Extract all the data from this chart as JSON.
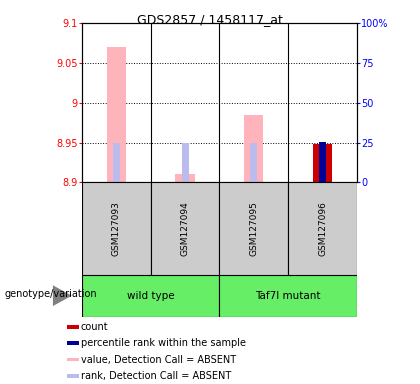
{
  "title": "GDS2857 / 1458117_at",
  "samples": [
    "GSM127093",
    "GSM127094",
    "GSM127095",
    "GSM127096"
  ],
  "group_labels": [
    "wild type",
    "Taf7l mutant"
  ],
  "ylim": [
    8.9,
    9.1
  ],
  "yticks": [
    8.9,
    8.95,
    9.0,
    9.05,
    9.1
  ],
  "ytick_labels": [
    "8.9",
    "8.95",
    "9",
    "9.05",
    "9.1"
  ],
  "y2lim": [
    0,
    100
  ],
  "y2ticks": [
    0,
    25,
    50,
    75,
    100
  ],
  "y2tick_labels": [
    "0",
    "25",
    "50",
    "75",
    "100%"
  ],
  "pink_bar_tops": [
    9.07,
    8.91,
    8.985,
    null
  ],
  "lightblue_tops": [
    8.949,
    8.949,
    8.949,
    null
  ],
  "red_bar_tops": [
    null,
    null,
    null,
    8.948
  ],
  "blue_bar_tops": [
    null,
    null,
    null,
    8.951
  ],
  "bar_bottom": 8.9,
  "pink_color": "#FFB3BA",
  "lightblue_color": "#BBBBEE",
  "red_color": "#CC0000",
  "blue_color": "#000099",
  "gray_box_color": "#CCCCCC",
  "green_color": "#66EE66",
  "genotype_label": "genotype/variation",
  "legend_items": [
    {
      "color": "#CC0000",
      "label": "count"
    },
    {
      "color": "#000099",
      "label": "percentile rank within the sample"
    },
    {
      "color": "#FFB3BA",
      "label": "value, Detection Call = ABSENT"
    },
    {
      "color": "#BBBBEE",
      "label": "rank, Detection Call = ABSENT"
    }
  ],
  "title_fontsize": 9,
  "tick_fontsize": 7,
  "label_fontsize": 7,
  "legend_fontsize": 7
}
